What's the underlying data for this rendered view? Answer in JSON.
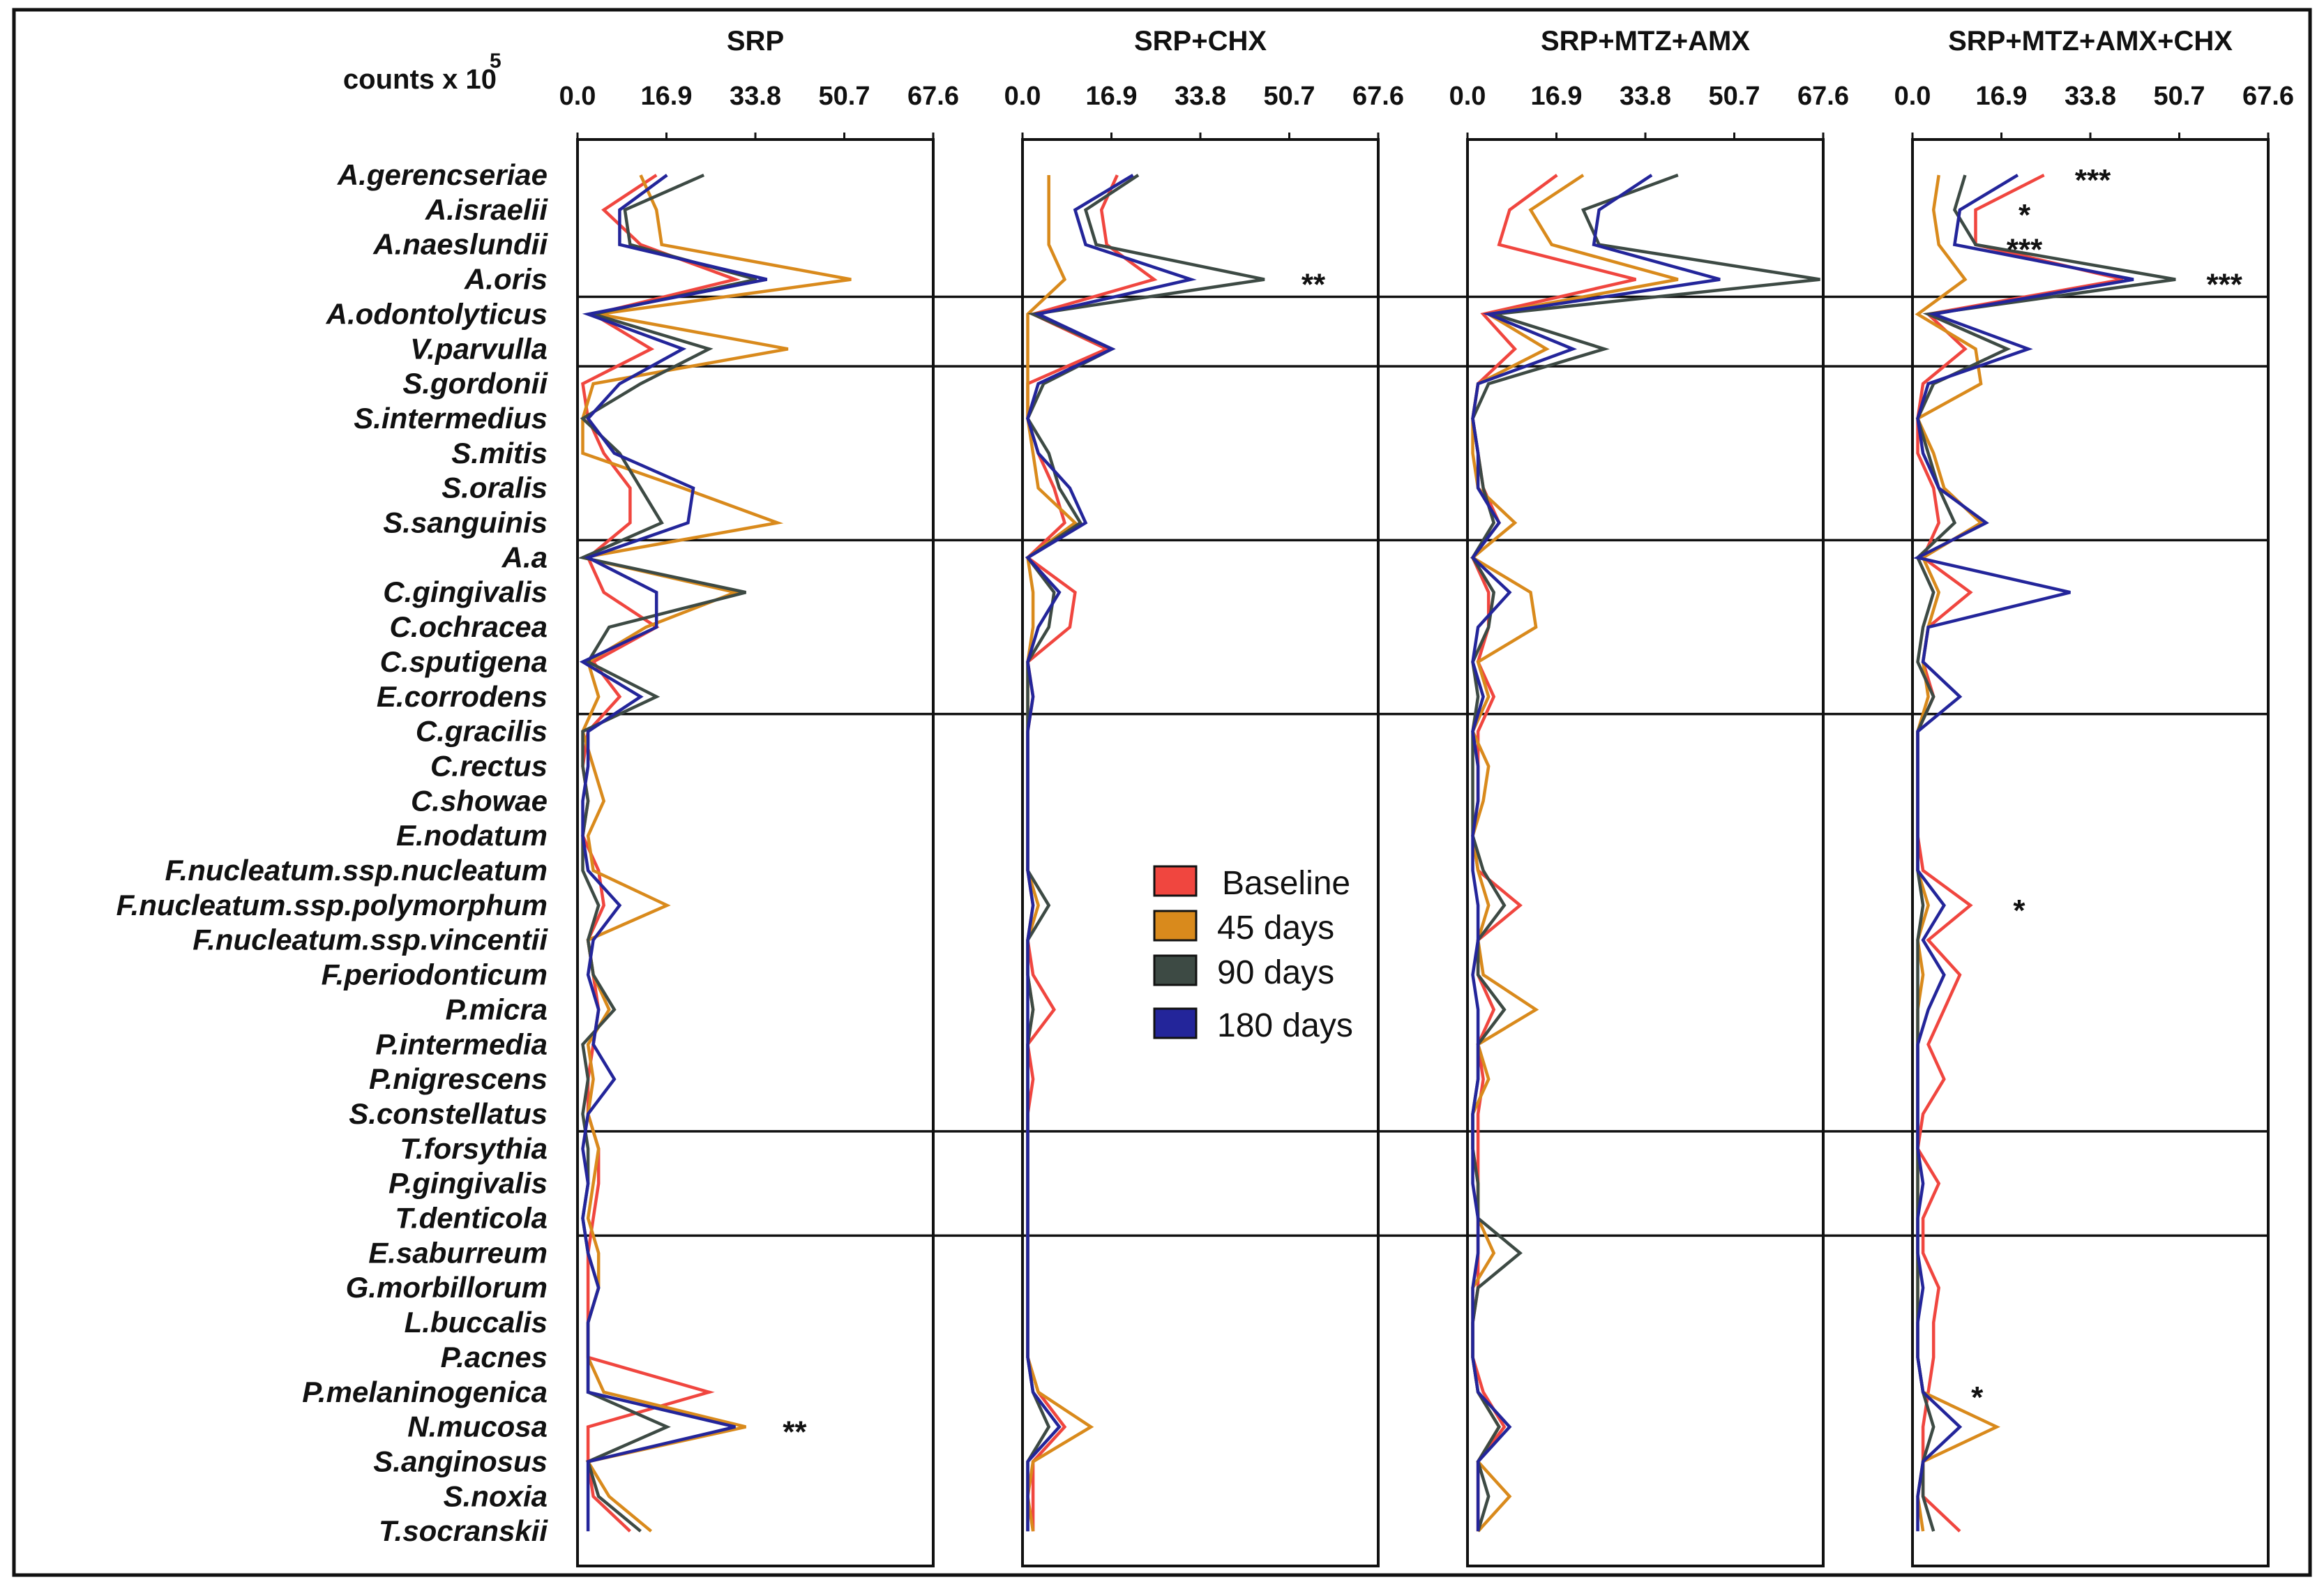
{
  "figure": {
    "units_label": "counts x 10",
    "units_exponent": "5"
  },
  "colors": {
    "Baseline": "#f0463f",
    "45 days": "#d98a1c",
    "90 days": "#3d4a44",
    "180 days": "#23259a"
  },
  "chart_data": {
    "type": "line",
    "xlim": [
      0,
      67.6
    ],
    "xticks": [
      "0.0",
      "16.9",
      "33.8",
      "50.7",
      "67.6"
    ],
    "ylabels": [
      "A.gerencseriae",
      "A.israelii",
      "A.naeslundii",
      "A.oris",
      "A.odontolyticus",
      "V.parvulla",
      "S.gordonii",
      "S.intermedius",
      "S.mitis",
      "S.oralis",
      "S.sanguinis",
      "A.a",
      "C.gingivalis",
      "C.ochracea",
      "C.sputigena",
      "E.corrodens",
      "C.gracilis",
      "C.rectus",
      "C.showae",
      "E.nodatum",
      "F.nucleatum.ssp.nucleatum",
      "F.nucleatum.ssp.polymorphum",
      "F.nucleatum.ssp.vincentii",
      "F.periodonticum",
      "P.micra",
      "P.intermedia",
      "P.nigrescens",
      "S.constellatus",
      "T.forsythia",
      "P.gingivalis",
      "T.denticola",
      "E.saburreum",
      "G.morbillorum",
      "L.buccalis",
      "P.acnes",
      "P.melaninogenica",
      "N.mucosa",
      "S.anginosus",
      "S.noxia",
      "T.socranskii"
    ],
    "group_boundaries_after": [
      3,
      5,
      10,
      15,
      27,
      30
    ],
    "legend": [
      "Baseline",
      "45 days",
      "90 days",
      "180 days"
    ],
    "panels": [
      {
        "title": "SRP",
        "series": [
          {
            "name": "Baseline",
            "values": [
              15,
              5,
              12,
              30,
              3,
              14,
              1,
              2,
              5,
              10,
              10,
              2,
              5,
              15,
              3,
              8,
              2,
              1,
              2,
              1,
              4,
              5,
              2,
              3,
              4,
              3,
              2,
              2,
              4,
              4,
              3,
              2,
              2,
              2,
              2,
              25,
              2,
              2,
              3,
              10
            ]
          },
          {
            "name": "45 days",
            "values": [
              12,
              15,
              16,
              52,
              4,
              40,
              3,
              1,
              1,
              20,
              38,
              1,
              30,
              13,
              2,
              4,
              1,
              3,
              5,
              2,
              3,
              17,
              2,
              3,
              6,
              2,
              3,
              2,
              4,
              3,
              2,
              4,
              4,
              2,
              2,
              5,
              32,
              2,
              6,
              14
            ]
          },
          {
            "name": "90 days",
            "values": [
              24,
              9,
              10,
              34,
              3,
              25,
              12,
              1,
              8,
              12,
              16,
              1,
              32,
              6,
              2,
              15,
              1,
              1,
              2,
              1,
              1,
              4,
              2,
              3,
              7,
              1,
              2,
              1,
              2,
              2,
              1,
              2,
              4,
              2,
              2,
              2,
              17,
              2,
              4,
              12
            ]
          },
          {
            "name": "180 days",
            "values": [
              17,
              8,
              8,
              36,
              2,
              20,
              8,
              2,
              7,
              22,
              21,
              2,
              15,
              15,
              1,
              12,
              2,
              2,
              1,
              1,
              2,
              8,
              3,
              2,
              4,
              3,
              7,
              2,
              1,
              2,
              1,
              2,
              4,
              2,
              2,
              2,
              30,
              2,
              2,
              2
            ]
          }
        ],
        "annotations": [
          {
            "row": "N.mucosa",
            "text": "**"
          }
        ]
      },
      {
        "title": "SRP+CHX",
        "series": [
          {
            "name": "Baseline",
            "values": [
              18,
              15,
              16,
              25,
              2,
              16,
              1,
              1,
              3,
              6,
              8,
              1,
              10,
              9,
              1,
              2,
              1,
              1,
              1,
              1,
              1,
              2,
              1,
              2,
              6,
              1,
              2,
              1,
              1,
              1,
              1,
              1,
              1,
              1,
              1,
              3,
              8,
              2,
              2,
              2
            ]
          },
          {
            "name": "45 days",
            "values": [
              5,
              5,
              5,
              8,
              1,
              1,
              1,
              1,
              2,
              3,
              10,
              1,
              2,
              2,
              1,
              1,
              1,
              1,
              1,
              1,
              1,
              3,
              1,
              1,
              2,
              1,
              1,
              1,
              1,
              1,
              1,
              1,
              1,
              1,
              1,
              3,
              13,
              2,
              1,
              2
            ]
          },
          {
            "name": "90 days",
            "values": [
              22,
              12,
              14,
              46,
              2,
              17,
              4,
              1,
              5,
              7,
              11,
              1,
              6,
              5,
              1,
              1,
              1,
              1,
              1,
              1,
              1,
              5,
              1,
              1,
              2,
              1,
              1,
              1,
              1,
              1,
              1,
              1,
              1,
              1,
              1,
              2,
              5,
              1,
              1,
              1
            ]
          },
          {
            "name": "180 days",
            "values": [
              21,
              10,
              12,
              32,
              3,
              17,
              3,
              1,
              3,
              9,
              12,
              1,
              7,
              3,
              1,
              2,
              1,
              1,
              1,
              1,
              1,
              2,
              1,
              1,
              1,
              1,
              1,
              1,
              1,
              1,
              1,
              1,
              1,
              1,
              1,
              2,
              7,
              1,
              1,
              1
            ]
          }
        ],
        "annotations": [
          {
            "row": "A.oris",
            "text": "**"
          }
        ]
      },
      {
        "title": "SRP+MTZ+AMX",
        "series": [
          {
            "name": "Baseline",
            "values": [
              17,
              8,
              6,
              32,
              3,
              9,
              2,
              1,
              2,
              3,
              6,
              1,
              4,
              4,
              2,
              5,
              2,
              2,
              2,
              1,
              2,
              10,
              2,
              2,
              5,
              2,
              3,
              2,
              2,
              2,
              2,
              2,
              2,
              1,
              1,
              3,
              7,
              2,
              2,
              2
            ]
          },
          {
            "name": "45 days",
            "values": [
              22,
              12,
              16,
              40,
              4,
              15,
              2,
              1,
              1,
              2,
              9,
              1,
              12,
              13,
              2,
              4,
              1,
              4,
              3,
              1,
              2,
              4,
              2,
              3,
              13,
              2,
              4,
              1,
              1,
              2,
              2,
              5,
              1,
              1,
              1,
              2,
              6,
              2,
              8,
              2
            ]
          },
          {
            "name": "90 days",
            "values": [
              40,
              22,
              25,
              67,
              5,
              26,
              4,
              1,
              2,
              3,
              5,
              1,
              5,
              4,
              1,
              2,
              1,
              1,
              1,
              1,
              3,
              7,
              2,
              2,
              7,
              2,
              2,
              1,
              1,
              2,
              2,
              10,
              2,
              1,
              1,
              2,
              6,
              2,
              4,
              2
            ]
          },
          {
            "name": "180 days",
            "values": [
              35,
              25,
              24,
              48,
              4,
              20,
              2,
              1,
              2,
              2,
              6,
              1,
              8,
              2,
              1,
              3,
              1,
              2,
              2,
              1,
              1,
              2,
              2,
              1,
              2,
              2,
              2,
              1,
              1,
              1,
              2,
              2,
              1,
              1,
              1,
              2,
              8,
              2,
              2,
              2
            ]
          }
        ],
        "annotations": []
      },
      {
        "title": "SRP+MTZ+AMX+CHX",
        "series": [
          {
            "name": "Baseline",
            "values": [
              25,
              12,
              12,
              40,
              3,
              10,
              2,
              1,
              1,
              4,
              5,
              2,
              11,
              3,
              2,
              4,
              1,
              1,
              1,
              1,
              2,
              11,
              3,
              9,
              6,
              3,
              6,
              2,
              1,
              5,
              2,
              2,
              5,
              4,
              4,
              3,
              2,
              2,
              2,
              9
            ]
          },
          {
            "name": "45 days",
            "values": [
              5,
              4,
              5,
              10,
              1,
              12,
              13,
              1,
              4,
              6,
              13,
              2,
              5,
              3,
              2,
              3,
              1,
              1,
              1,
              1,
              1,
              3,
              1,
              2,
              1,
              1,
              1,
              1,
              1,
              1,
              1,
              1,
              1,
              1,
              1,
              2,
              16,
              2,
              1,
              2
            ]
          },
          {
            "name": "90 days",
            "values": [
              10,
              8,
              12,
              50,
              3,
              18,
              4,
              1,
              3,
              5,
              8,
              1,
              4,
              2,
              1,
              4,
              1,
              1,
              1,
              1,
              1,
              2,
              1,
              1,
              1,
              1,
              1,
              1,
              1,
              1,
              1,
              1,
              1,
              1,
              1,
              2,
              4,
              2,
              2,
              4
            ]
          },
          {
            "name": "180 days",
            "values": [
              20,
              9,
              8,
              42,
              4,
              22,
              3,
              1,
              2,
              5,
              14,
              1,
              30,
              3,
              2,
              9,
              1,
              1,
              1,
              1,
              1,
              6,
              2,
              6,
              3,
              1,
              1,
              1,
              1,
              2,
              1,
              1,
              2,
              1,
              1,
              2,
              9,
              2,
              1,
              1
            ]
          }
        ],
        "annotations": [
          {
            "row": "A.gerencseriae",
            "text": "***"
          },
          {
            "row": "A.israelii",
            "text": "*"
          },
          {
            "row": "A.naeslundii",
            "text": "***"
          },
          {
            "row": "A.oris",
            "text": "***"
          },
          {
            "row": "F.nucleatum.ssp.polymorphum",
            "text": "*"
          },
          {
            "row": "P.melaninogenica",
            "text": "*"
          }
        ]
      }
    ]
  }
}
